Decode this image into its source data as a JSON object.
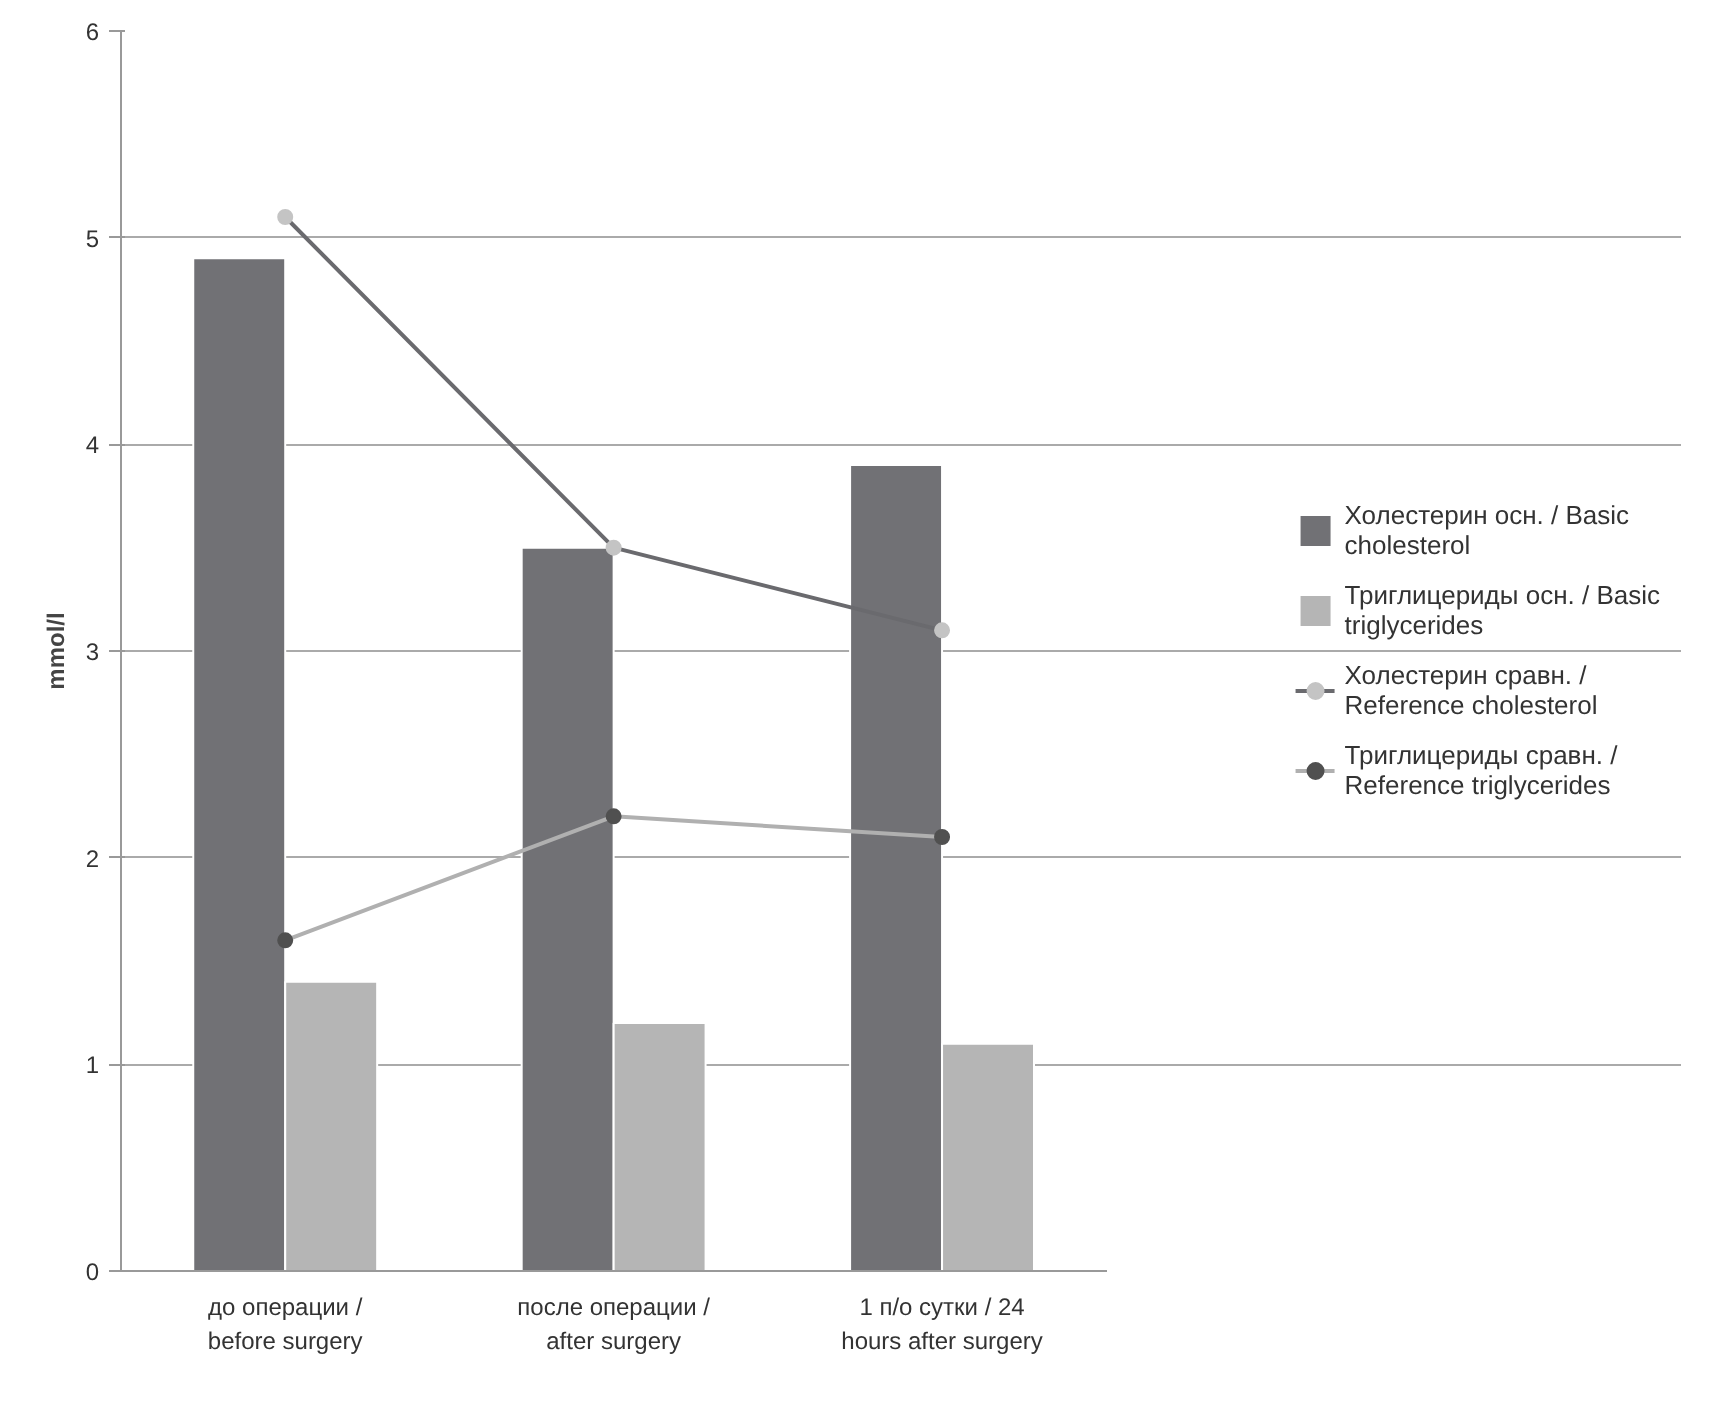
{
  "chart_data": {
    "type": "bar",
    "ylabel": "mmol/l",
    "categories": [
      "до операции / before surgery",
      "после операции / after surgery",
      "1 п/о сутки / 24 hours after surgery"
    ],
    "series": [
      {
        "name": "Холестерин осн. / Basic cholesterol",
        "color": "#717175",
        "values": [
          4.9,
          3.5,
          3.9
        ]
      },
      {
        "name": "Триглицериды осн. / Basic triglycerides",
        "color": "#b5b5b5",
        "values": [
          1.4,
          1.2,
          1.1
        ]
      },
      {
        "name": "Холестерин сравн. / Reference cholesterol",
        "type": "line",
        "color": "#6a6a6e",
        "colors": [
          "#c4c4c4",
          "#c4c4c4",
          "#c4c4c4"
        ],
        "values": [
          5.1,
          3.5,
          3.1
        ]
      },
      {
        "name": "Триглицериды сравн. / Reference triglycerides",
        "type": "line",
        "color": "#b0b0b0",
        "colors": [
          "#505050",
          "#505050",
          "#505050"
        ],
        "values": [
          1.6,
          2.2,
          2.1
        ]
      }
    ],
    "ylim": [
      0,
      6
    ],
    "yticks": [
      0,
      1,
      2,
      3,
      4,
      5,
      6
    ],
    "grid": "y",
    "legend": "right",
    "marker": "circle"
  }
}
